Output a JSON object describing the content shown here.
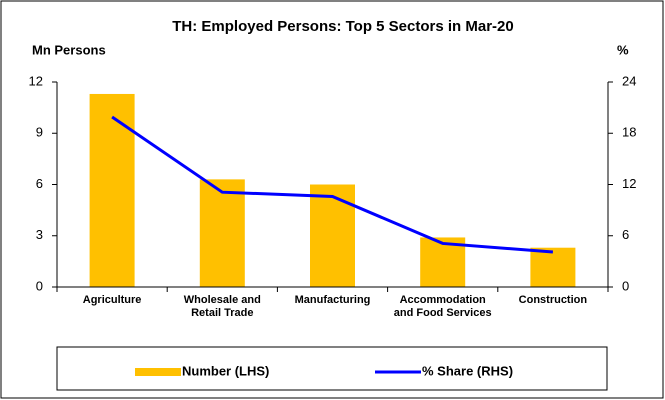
{
  "chart_data": {
    "type": "bar",
    "title": "TH: Employed  Persons: Top 5 Sectors in Mar-20",
    "y_label": "Mn Persons",
    "y2_label": "%",
    "categories": [
      "Agriculture",
      "Wholesale and Retail Trade",
      "Manufacturing",
      "Accommodation and Food Services",
      "Construction"
    ],
    "series": [
      {
        "name": "Number (LHS)",
        "color": "#ffc000",
        "values": [
          11.3,
          6.3,
          6.0,
          2.9,
          2.3
        ]
      },
      {
        "name": "% Share (RHS)",
        "color": "#0000ff",
        "values": [
          19.9,
          11.1,
          10.6,
          5.1,
          4.1
        ],
        "axis": "y2"
      }
    ],
    "ylim": [
      0,
      12
    ],
    "yticks": [
      0,
      3,
      6,
      9,
      12
    ],
    "y2lim": [
      0,
      24
    ],
    "y2ticks": [
      0,
      6,
      12,
      18,
      24
    ],
    "legend": "bottom"
  }
}
